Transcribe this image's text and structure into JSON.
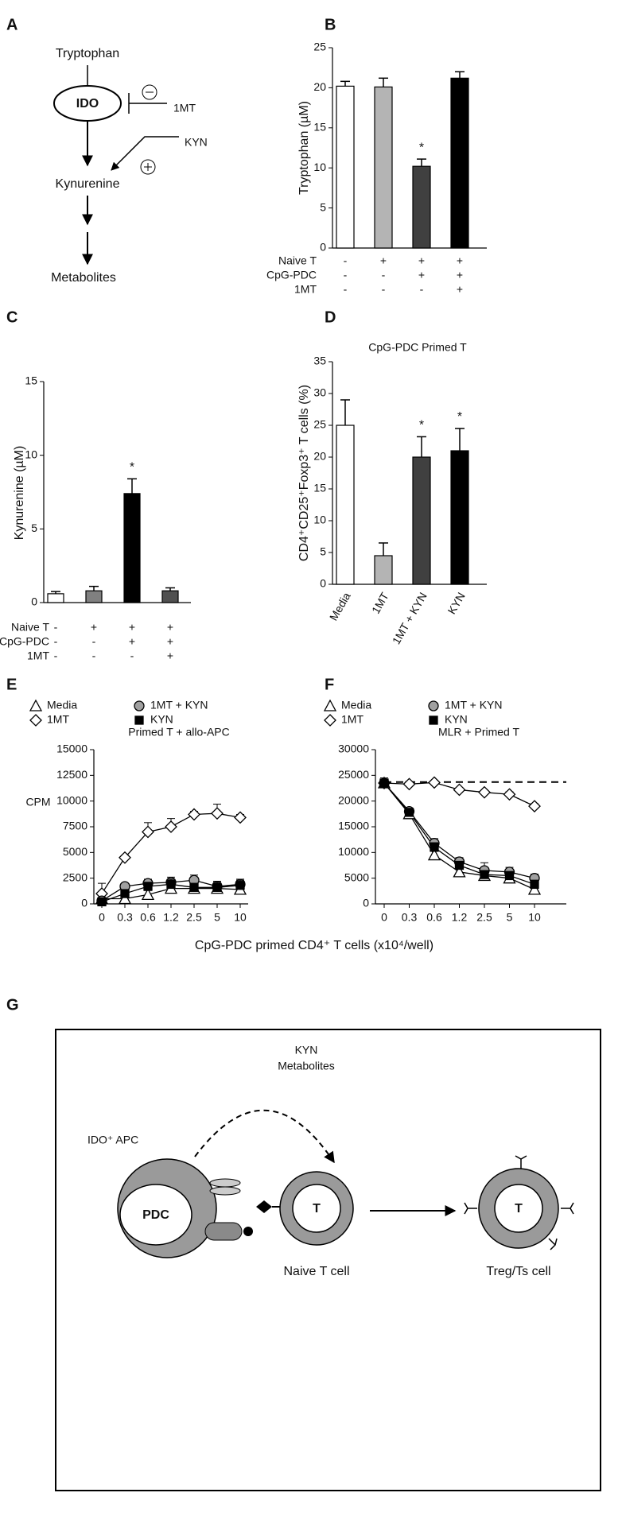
{
  "panel_labels": [
    "A",
    "B",
    "C",
    "D",
    "E",
    "F",
    "G"
  ],
  "diagram_a": {
    "substrate": "Tryptophan",
    "enzyme": "IDO",
    "inhibitor": "1MT",
    "supplement": "KYN",
    "product": "Kynurenine",
    "end": "Metabolites"
  },
  "chart_data": [
    {
      "type": "bar",
      "ylabel": "Tryptophan (µM)",
      "values": [
        20.2,
        20.1,
        10.2,
        21.2
      ],
      "errors": [
        0.6,
        1.1,
        0.9,
        0.8
      ],
      "colors": [
        "#ffffff",
        "#b4b4b4",
        "#404040",
        "#000000"
      ],
      "significance": [
        null,
        null,
        "*",
        null
      ],
      "ylim": [
        0,
        25
      ],
      "yticks": [
        0,
        5,
        10,
        15,
        20,
        25
      ],
      "conditions": [
        {
          "name": "Naive T",
          "values": [
            "-",
            "+",
            "+",
            "+"
          ]
        },
        {
          "name": "CpG-PDC",
          "values": [
            "-",
            "-",
            "+",
            "+"
          ]
        },
        {
          "name": "1MT",
          "values": [
            "-",
            "-",
            "-",
            "+"
          ]
        }
      ]
    },
    {
      "type": "bar",
      "ylabel": "Kynurenine (µM)",
      "values": [
        0.6,
        0.8,
        7.4,
        0.8
      ],
      "errors": [
        0.15,
        0.3,
        1.0,
        0.2
      ],
      "colors": [
        "#ffffff",
        "#808080",
        "#000000",
        "#505050"
      ],
      "significance": [
        null,
        null,
        "*",
        null
      ],
      "ylim": [
        0,
        15
      ],
      "yticks": [
        0,
        5,
        10,
        15
      ],
      "conditions": [
        {
          "name": "Naive T",
          "values": [
            "-",
            "+",
            "+",
            "+"
          ]
        },
        {
          "name": "CpG-PDC",
          "values": [
            "-",
            "-",
            "+",
            "+"
          ]
        },
        {
          "name": "1MT",
          "values": [
            "-",
            "-",
            "-",
            "+"
          ]
        }
      ]
    },
    {
      "type": "bar",
      "title": "CpG-PDC Primed T",
      "ylabel": "CD4⁺CD25⁺Foxp3⁺ T cells (%)",
      "categories": [
        "Media",
        "1MT",
        "1MT + KYN",
        "KYN"
      ],
      "values": [
        25,
        4.5,
        20,
        21
      ],
      "errors": [
        4,
        2,
        3.2,
        3.5
      ],
      "colors": [
        "#ffffff",
        "#b4b4b4",
        "#404040",
        "#000000"
      ],
      "significance": [
        null,
        null,
        "*",
        "*"
      ],
      "ylim": [
        0,
        35
      ],
      "yticks": [
        0,
        5,
        10,
        15,
        20,
        25,
        30,
        35
      ]
    },
    {
      "type": "line",
      "title": "Primed T + allo-APC",
      "ylabel": "CPM",
      "categories": [
        "0",
        "0.3",
        "0.6",
        "1.2",
        "2.5",
        "5",
        "10"
      ],
      "ylim": [
        0,
        15000
      ],
      "yticks": [
        0,
        2500,
        5000,
        7500,
        10000,
        12500,
        15000
      ],
      "series": [
        {
          "name": "Media",
          "marker": "triangle",
          "color": "#ffffff",
          "values": [
            500,
            500,
            900,
            1500,
            1500,
            1500,
            1400
          ],
          "errors": [
            300,
            300,
            400,
            300,
            300,
            300,
            400
          ]
        },
        {
          "name": "1MT",
          "marker": "diamond",
          "color": "#ffffff",
          "values": [
            1000,
            4500,
            7000,
            7500,
            8700,
            8800,
            8400
          ],
          "errors": [
            1000,
            200,
            900,
            800,
            300,
            900,
            300
          ]
        },
        {
          "name": "1MT + KYN",
          "marker": "circle",
          "color": "#a0a0a0",
          "values": [
            300,
            1700,
            2000,
            2100,
            2300,
            1700,
            1900
          ],
          "errors": [
            300,
            300,
            400,
            500,
            500,
            500,
            500
          ]
        },
        {
          "name": "KYN",
          "marker": "square",
          "color": "#000000",
          "values": [
            200,
            1000,
            1700,
            1900,
            1600,
            1600,
            1800
          ],
          "errors": [
            300,
            300,
            400,
            500,
            400,
            500,
            500
          ]
        }
      ]
    },
    {
      "type": "line",
      "title": "MLR + Primed T",
      "categories": [
        "0",
        "0.3",
        "0.6",
        "1.2",
        "2.5",
        "5",
        "10"
      ],
      "ylim": [
        0,
        30000
      ],
      "yticks": [
        0,
        5000,
        10000,
        15000,
        20000,
        25000,
        30000
      ],
      "reference_line": 23700,
      "series": [
        {
          "name": "Media",
          "marker": "triangle",
          "color": "#ffffff",
          "values": [
            23500,
            17500,
            9500,
            6200,
            5500,
            5000,
            2800
          ],
          "errors": [
            1000,
            500,
            800,
            700,
            600,
            600,
            1000
          ]
        },
        {
          "name": "1MT",
          "marker": "diamond",
          "color": "#ffffff",
          "values": [
            23500,
            23300,
            23600,
            22200,
            21700,
            21300,
            19000
          ],
          "errors": [
            600,
            500,
            400,
            400,
            400,
            500,
            500
          ]
        },
        {
          "name": "1MT + KYN",
          "marker": "circle",
          "color": "#a0a0a0",
          "values": [
            23500,
            18000,
            11800,
            8200,
            6500,
            6200,
            5000
          ],
          "errors": [
            600,
            500,
            900,
            800,
            1500,
            900,
            800
          ]
        },
        {
          "name": "KYN",
          "marker": "square",
          "color": "#000000",
          "values": [
            23500,
            17800,
            11000,
            7500,
            5700,
            5500,
            3800
          ],
          "errors": [
            600,
            500,
            900,
            700,
            700,
            800,
            800
          ]
        }
      ]
    }
  ],
  "shared_xlabel": "CpG-PDC primed CD4⁺ T cells (x10⁴/well)",
  "diagram_g": {
    "signal_1": "KYN",
    "signal_2": "Metabolites",
    "apc": "IDO⁺ APC",
    "pdc": "PDC",
    "naive_t": "T",
    "naive_label": "Naive T cell",
    "treg_t": "T",
    "treg_label": "Treg/Ts cell"
  }
}
